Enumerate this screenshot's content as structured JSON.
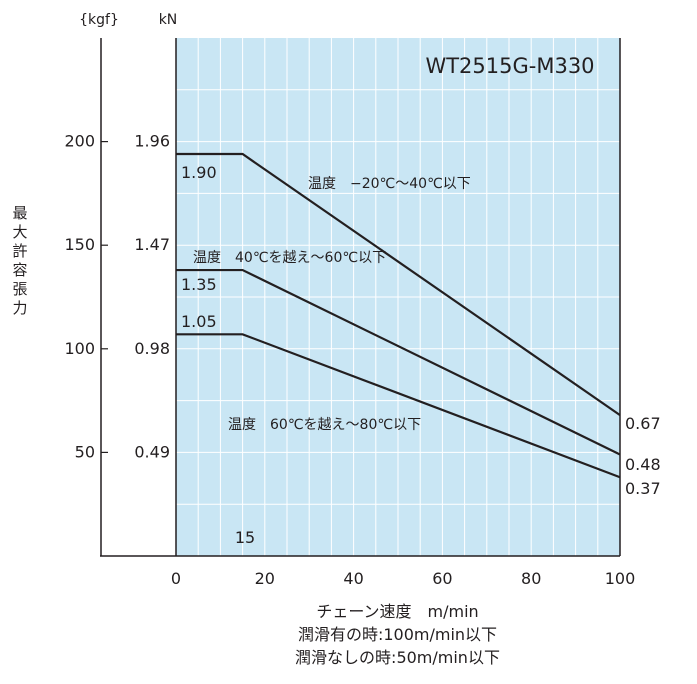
{
  "chart_data": {
    "type": "line",
    "title": "WT2515G-M330",
    "xlabel": "チェーン速度　m/min",
    "ylabel": "最大許容張力",
    "y_units": {
      "left": "{kgf}",
      "right": "kN"
    },
    "xlim": [
      0,
      100
    ],
    "ylim_kgf": [
      0,
      250
    ],
    "x_ticks": [
      0,
      20,
      40,
      60,
      80,
      100
    ],
    "y_ticks_kgf": [
      {
        "kgf": 50,
        "label_kgf": "50",
        "label_kn": "0.49"
      },
      {
        "kgf": 100,
        "label_kgf": "100",
        "label_kn": "0.98"
      },
      {
        "kgf": 150,
        "label_kgf": "150",
        "label_kn": "1.47"
      },
      {
        "kgf": 200,
        "label_kgf": "200",
        "label_kn": "1.96"
      }
    ],
    "grid": true,
    "background": "#c9e6f4",
    "series": [
      {
        "name": "温度　−20℃〜40℃以下",
        "x": [
          0,
          15,
          100
        ],
        "y_kgf": [
          194,
          194,
          68
        ],
        "start_label": "1.90",
        "end_label": "0.67"
      },
      {
        "name": "温度　40℃を越え〜60℃以下",
        "x": [
          0,
          15,
          100
        ],
        "y_kgf": [
          138,
          138,
          49
        ],
        "start_label": "1.35",
        "end_label": "0.48"
      },
      {
        "name": "温度　60℃を越え〜80℃以下",
        "x": [
          0,
          15,
          100
        ],
        "y_kgf": [
          107,
          107,
          38
        ],
        "start_label": "1.05",
        "end_label": "0.37"
      }
    ],
    "annotations": [
      "15"
    ]
  },
  "notes": [
    "潤滑有の時:100m/min以下",
    "潤滑なしの時:50m/min以下"
  ]
}
